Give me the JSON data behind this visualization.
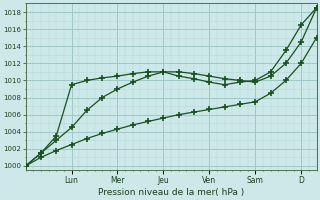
{
  "xlabel": "Pression niveau de la mer( hPa )",
  "bg_color": "#cce8e8",
  "grid_color_major": "#a0c8c8",
  "grid_color_minor": "#b8d8d8",
  "line_color": "#1a5020",
  "ylim": [
    999.5,
    1019
  ],
  "ytick_major": 2,
  "ytick_minor": 1,
  "day_labels": [
    "Lun",
    "Mer",
    "Jeu",
    "Ven",
    "Sam",
    "D"
  ],
  "day_positions": [
    1.5,
    3.0,
    4.5,
    6.0,
    7.5,
    9.0
  ],
  "xlim": [
    0,
    9.5
  ],
  "series1": {
    "x": [
      0.0,
      0.5,
      1.0,
      1.5,
      2.0,
      2.5,
      3.0,
      3.5,
      4.0,
      4.5,
      5.0,
      5.5,
      6.0,
      6.5,
      7.0,
      7.5,
      8.0,
      8.5,
      9.0,
      9.5
    ],
    "y": [
      1000.0,
      1001.0,
      1001.8,
      1002.5,
      1003.2,
      1003.8,
      1004.3,
      1004.8,
      1005.2,
      1005.6,
      1006.0,
      1006.3,
      1006.6,
      1006.9,
      1007.2,
      1007.5,
      1008.5,
      1010.0,
      1012.0,
      1015.0
    ]
  },
  "series2": {
    "x": [
      0.0,
      0.5,
      1.0,
      1.5,
      2.0,
      2.5,
      3.0,
      3.5,
      4.0,
      4.5,
      5.0,
      5.5,
      6.0,
      6.5,
      7.0,
      7.5,
      8.0,
      8.5,
      9.0,
      9.5
    ],
    "y": [
      1000.0,
      1001.5,
      1003.0,
      1004.5,
      1006.5,
      1008.0,
      1009.0,
      1009.8,
      1010.5,
      1011.0,
      1011.0,
      1010.8,
      1010.5,
      1010.2,
      1010.0,
      1009.8,
      1010.5,
      1012.0,
      1014.5,
      1018.5
    ]
  },
  "series3": {
    "x": [
      0.0,
      0.5,
      1.0,
      1.5,
      2.0,
      2.5,
      3.0,
      3.5,
      4.0,
      4.5,
      5.0,
      5.5,
      6.0,
      6.5,
      7.0,
      7.5,
      8.0,
      8.5,
      9.0,
      9.5
    ],
    "y": [
      1000.0,
      1001.5,
      1003.5,
      1009.5,
      1010.0,
      1010.3,
      1010.5,
      1010.8,
      1011.0,
      1011.0,
      1010.5,
      1010.2,
      1009.8,
      1009.5,
      1009.8,
      1010.0,
      1011.0,
      1013.5,
      1016.5,
      1018.5
    ]
  }
}
